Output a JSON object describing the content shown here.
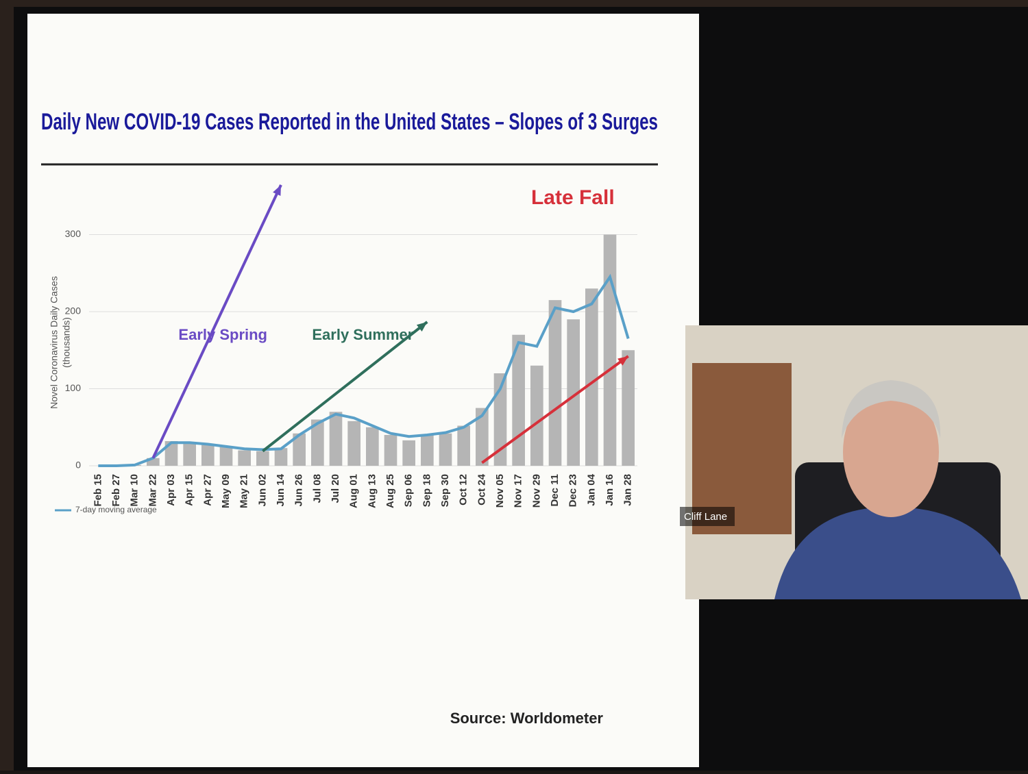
{
  "chart_data": {
    "type": "bar-line",
    "title": "Daily New COVID-19 Cases Reported in the United States – Slopes of 3 Surges",
    "y_label": [
      "Novel Coronavirus Daily Cases",
      "(thousands)"
    ],
    "categories": [
      "Feb 15",
      "Feb 27",
      "Mar 10",
      "Mar 22",
      "Apr 03",
      "Apr 15",
      "Apr 27",
      "May 09",
      "May 21",
      "Jun 02",
      "Jun 14",
      "Jun 26",
      "Jul 08",
      "Jul 20",
      "Aug 01",
      "Aug 13",
      "Aug 25",
      "Sep 06",
      "Sep 18",
      "Sep 30",
      "Oct 12",
      "Oct 24",
      "Nov 05",
      "Nov 17",
      "Nov 29",
      "Dec 11",
      "Dec 23",
      "Jan 04",
      "Jan 16",
      "Jan 28"
    ],
    "bar_values": [
      0,
      0,
      1,
      10,
      32,
      30,
      27,
      25,
      20,
      19,
      23,
      42,
      60,
      70,
      58,
      50,
      40,
      33,
      40,
      42,
      52,
      75,
      120,
      170,
      130,
      215,
      190,
      230,
      300,
      150
    ],
    "bar_color": "#b5b5b5",
    "series": [
      {
        "name": "7-day moving average",
        "color": "#5aa0c8",
        "values": [
          0,
          0,
          1,
          10,
          30,
          30,
          28,
          25,
          22,
          21,
          22,
          40,
          55,
          67,
          62,
          52,
          42,
          38,
          40,
          43,
          50,
          65,
          100,
          160,
          155,
          205,
          200,
          210,
          245,
          165
        ]
      }
    ],
    "annotations": [
      {
        "text": "Early Spring",
        "color": "#6a4bc4"
      },
      {
        "text": "Early Summer",
        "color": "#2f6f5c"
      },
      {
        "text": "Late Fall",
        "color": "#d6303a"
      }
    ],
    "ylim": [
      0,
      320
    ],
    "yticks": [
      0,
      100,
      200,
      300
    ],
    "grid": true,
    "source": "Source: Worldometer"
  },
  "participant": {
    "name": "Cliff Lane"
  }
}
